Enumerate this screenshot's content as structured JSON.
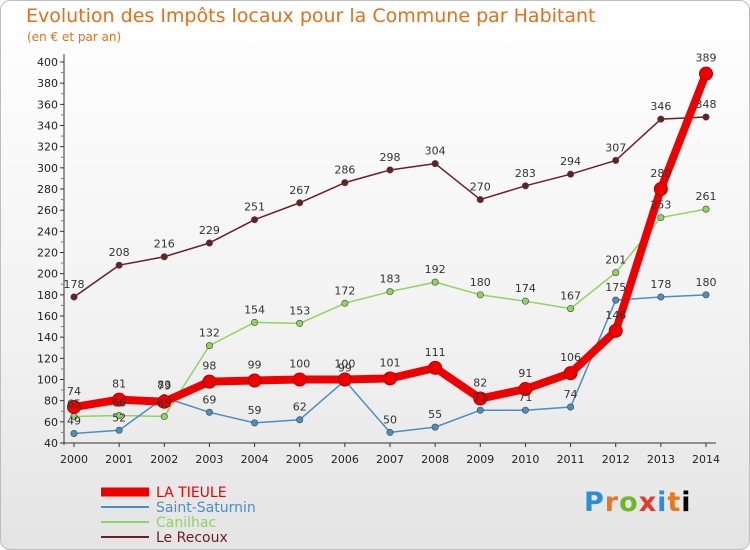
{
  "title": "Evolution des Impôts locaux pour la Commune par Habitant",
  "subtitle": "(en € et par an)",
  "logo": [
    "P",
    "r",
    "o",
    "x",
    "i",
    "t",
    "i"
  ],
  "chart_data": {
    "type": "line",
    "title": "Evolution des Impôts locaux pour la Commune par Habitant",
    "subtitle": "(en € et par an)",
    "x": [
      2000,
      2001,
      2002,
      2003,
      2004,
      2005,
      2006,
      2007,
      2008,
      2009,
      2010,
      2011,
      2012,
      2013,
      2014
    ],
    "ylim": [
      40,
      400
    ],
    "yticks": [
      40,
      60,
      80,
      100,
      120,
      140,
      160,
      180,
      200,
      220,
      240,
      260,
      280,
      300,
      320,
      340,
      360,
      380,
      400
    ],
    "grid": false,
    "legend_position": "bottom-left",
    "series": [
      {
        "name": "LA TIEULE",
        "color": "#ee0000",
        "values": [
          74,
          81,
          79,
          98,
          99,
          100,
          100,
          101,
          111,
          82,
          91,
          106,
          146,
          280,
          389
        ],
        "labels": [
          "74",
          "81",
          "79",
          "98",
          "99",
          "100",
          "100",
          "101",
          "111",
          "82",
          "91",
          "106",
          "146",
          "280",
          "389"
        ]
      },
      {
        "name": "Saint-Saturnin",
        "color": "#4a8ec4",
        "values": [
          49,
          52,
          83,
          69,
          59,
          62,
          99,
          50,
          55,
          71,
          71,
          74,
          175,
          178,
          180
        ],
        "labels": [
          "49",
          "52",
          "83",
          "69",
          "59",
          "62",
          "99",
          "50",
          "55",
          "71",
          "71",
          "74",
          "175",
          "178",
          "180"
        ]
      },
      {
        "name": "Canilhac",
        "color": "#8fd45f",
        "values": [
          65,
          66,
          65,
          132,
          154,
          153,
          172,
          183,
          192,
          180,
          174,
          167,
          201,
          253,
          261
        ],
        "labels": [
          "65",
          "66",
          "65",
          "132",
          "154",
          "153",
          "172",
          "183",
          "192",
          "180",
          "174",
          "167",
          "201",
          "253",
          "261"
        ]
      },
      {
        "name": "Le Recoux",
        "color": "#6b1f24",
        "values": [
          178,
          208,
          216,
          229,
          251,
          267,
          286,
          298,
          304,
          270,
          283,
          294,
          307,
          346,
          348
        ],
        "labels": [
          "178",
          "208",
          "216",
          "229",
          "251",
          "267",
          "286",
          "298",
          "304",
          "270",
          "283",
          "294",
          "307",
          "346",
          "348"
        ]
      }
    ]
  }
}
